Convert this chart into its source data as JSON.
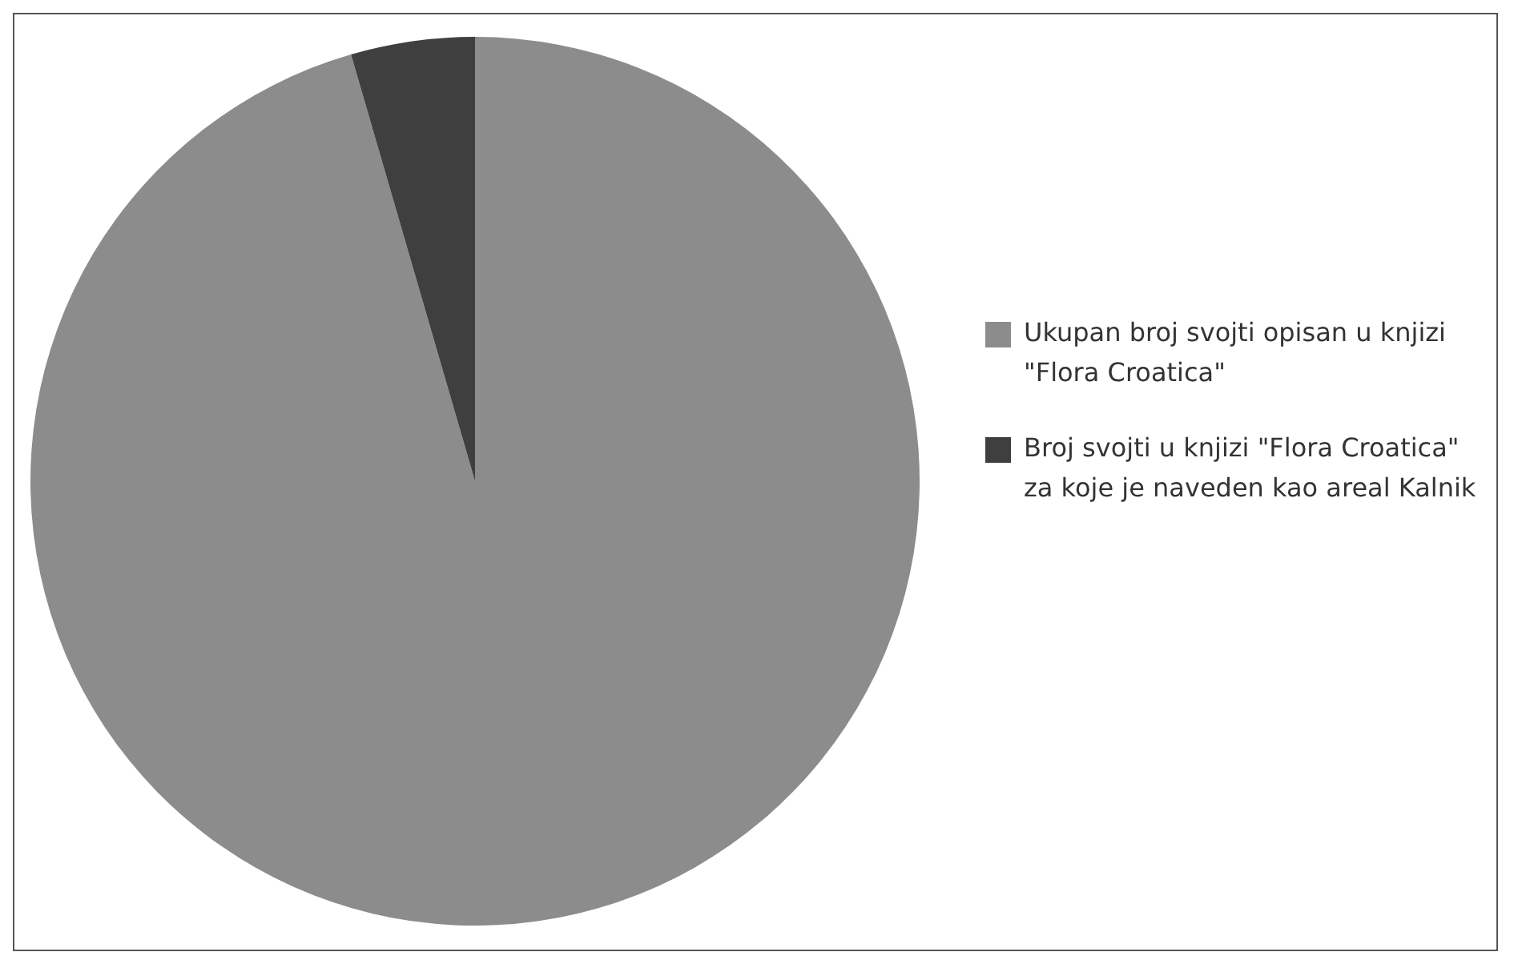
{
  "chart_data": {
    "type": "pie",
    "categories": [
      "Ukupan broj svojti opisan u knjizi \"Flora Croatica\"",
      "Broj svojti u knjizi \"Flora Croatica\" za koje je naveden kao areal Kalnik"
    ],
    "values": [
      95.5,
      4.5
    ],
    "colors": [
      "#8c8c8c",
      "#3f3f3f"
    ],
    "legend": "right"
  }
}
